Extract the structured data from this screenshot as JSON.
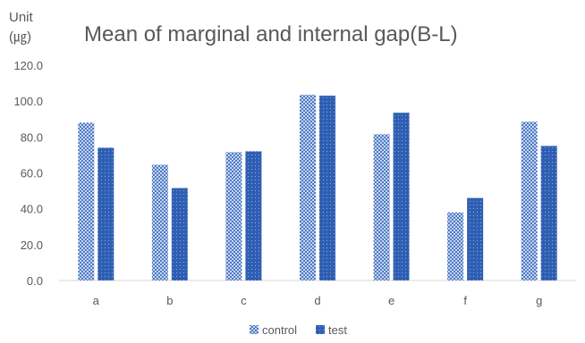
{
  "chart_data": {
    "type": "bar",
    "title": "Mean of  marginal and internal gap(B-L)",
    "ylabel_line1": "Unit",
    "ylabel_line2": "(㎍)",
    "xlabel": "",
    "categories": [
      "a",
      "b",
      "c",
      "d",
      "e",
      "f",
      "g"
    ],
    "series": [
      {
        "name": "control",
        "color": "#4472c4",
        "pattern": "crosshatch",
        "values": [
          88.0,
          64.5,
          71.5,
          103.5,
          81.5,
          38.0,
          88.5
        ]
      },
      {
        "name": "test",
        "color": "#2f5fb3",
        "pattern": "dotted-solid",
        "values": [
          74.0,
          51.5,
          72.0,
          103.0,
          93.5,
          46.0,
          75.0
        ]
      }
    ],
    "ylim": [
      0,
      120
    ],
    "yticks": [
      "0.0",
      "20.0",
      "40.0",
      "60.0",
      "80.0",
      "100.0",
      "120.0"
    ],
    "grid": false,
    "legend_position": "bottom"
  }
}
